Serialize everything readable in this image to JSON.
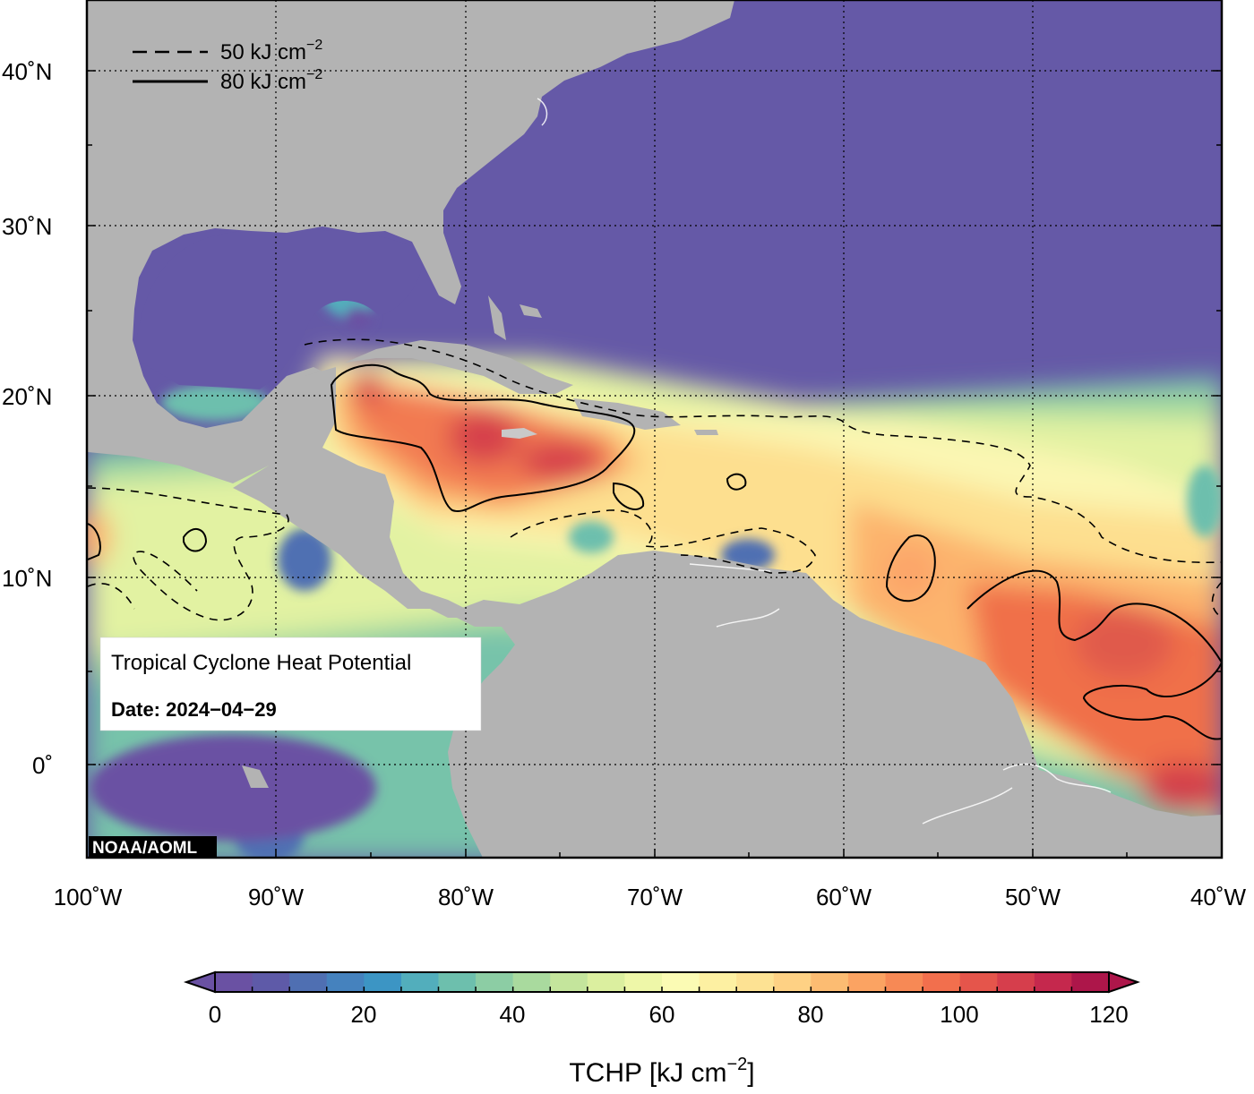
{
  "map": {
    "legend": {
      "dashed_value": "50 kJ cm",
      "solid_value": "80 kJ cm",
      "exponent": "−2"
    },
    "info_box": {
      "title": "Tropical Cyclone Heat Potential",
      "date_label": "Date: 2024−04−29"
    },
    "credit": "NOAA/AOML",
    "lat_labels": [
      "40˚N",
      "30˚N",
      "20˚N",
      "10˚N",
      "0˚"
    ],
    "lon_labels": [
      "100˚W",
      "90˚W",
      "80˚W",
      "70˚W",
      "60˚W",
      "50˚W",
      "40˚W"
    ],
    "colors": {
      "land": "#b3b3b3",
      "cold_ocean": "#6559a7",
      "hot": "#c0174c"
    }
  },
  "colorbar": {
    "ticks": [
      "0",
      "20",
      "40",
      "60",
      "80",
      "100",
      "120"
    ],
    "title": "TCHP [kJ cm",
    "title_exponent": "−2",
    "title_close": "]",
    "colors": [
      "#6a51a3",
      "#5e5aa8",
      "#4f6fb2",
      "#4582be",
      "#3c95c4",
      "#52aebc",
      "#6dbfad",
      "#8ccda4",
      "#a9da9e",
      "#c4e59c",
      "#dbef9f",
      "#eef7a8",
      "#fbfbb4",
      "#fdf0a2",
      "#fde293",
      "#fed184",
      "#fcbc72",
      "#fba362",
      "#f78955",
      "#f26f4d",
      "#e5554b",
      "#d63e4c",
      "#c5284d",
      "#ad164a"
    ]
  }
}
